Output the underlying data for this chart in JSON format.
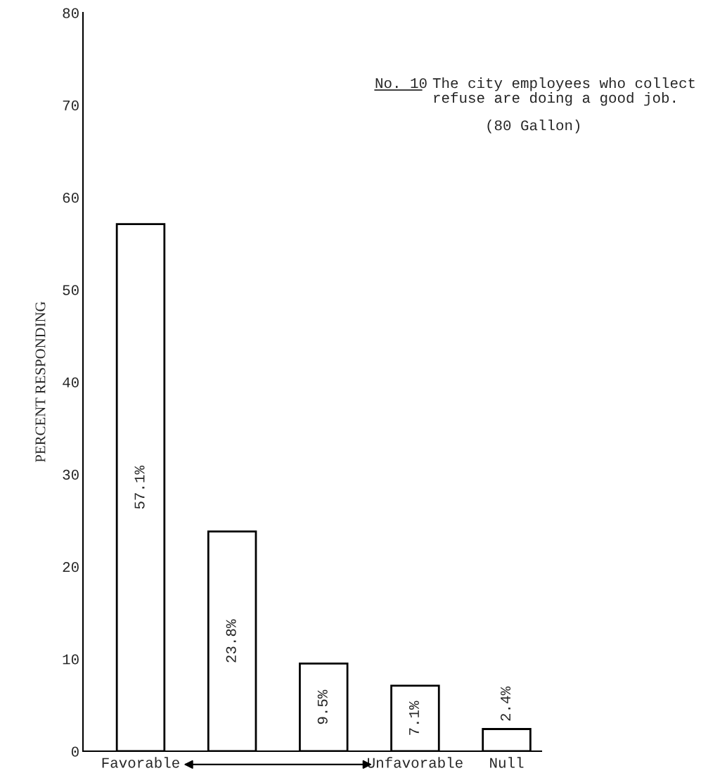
{
  "chart_data": {
    "type": "bar",
    "title": "No. 10",
    "subtitle": "The city employees who collect\nrefuse are doing a good job.",
    "annotations": [
      "(80 Gallon)"
    ],
    "ylabel": "PERCENT RESPONDING",
    "categories": [
      "Favorable",
      null,
      null,
      "Unfavorable",
      "Null"
    ],
    "values": [
      57.1,
      23.8,
      9.5,
      7.1,
      2.4
    ],
    "value_labels": [
      "57.1%",
      "23.8%",
      "9.5%",
      "7.1%",
      "2.4%"
    ],
    "color": "#ffffff",
    "ylim": [
      0,
      80
    ],
    "yticks": [
      0,
      10,
      20,
      30,
      40,
      50,
      60,
      70,
      80
    ],
    "grid": false,
    "legend": false
  }
}
